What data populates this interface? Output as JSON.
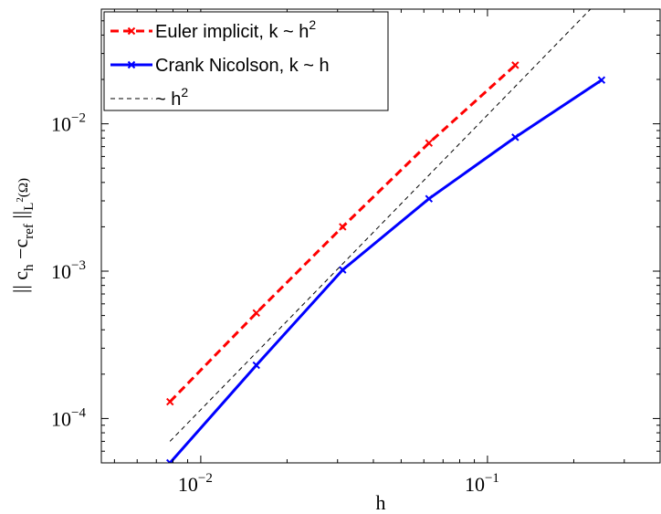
{
  "chart_data": {
    "type": "line",
    "x_scale": "log",
    "y_scale": "log",
    "xlabel": "h",
    "ylabel": "|| c_h − c_ref ||_{L^2(Ω)}",
    "xlim": [
      0.0045,
      0.4
    ],
    "ylim": [
      5e-05,
      0.06
    ],
    "grid": false,
    "legend_position": "top-left",
    "x_ticks": [
      {
        "value": 0.01,
        "base": "10",
        "exp": "−2"
      },
      {
        "value": 0.1,
        "base": "10",
        "exp": "−1"
      }
    ],
    "y_ticks": [
      {
        "value": 0.0001,
        "base": "10",
        "exp": "−4"
      },
      {
        "value": 0.001,
        "base": "10",
        "exp": "−3"
      },
      {
        "value": 0.01,
        "base": "10",
        "exp": "−2"
      }
    ],
    "series": [
      {
        "name": "Euler implicit,  k ~ h",
        "name_sup": "2",
        "color": "#ff0000",
        "dash": "9,5",
        "marker": "x",
        "x": [
          0.0078125,
          0.015625,
          0.03125,
          0.0625,
          0.125
        ],
        "y": [
          0.00013,
          0.00052,
          0.002,
          0.0074,
          0.025
        ]
      },
      {
        "name": "Crank Nicolson,  k ~ h",
        "name_sup": "",
        "color": "#0000ff",
        "dash": "",
        "marker": "x",
        "x": [
          0.0078125,
          0.015625,
          0.03125,
          0.0625,
          0.125,
          0.25
        ],
        "y": [
          5e-05,
          0.00023,
          0.00102,
          0.0031,
          0.0081,
          0.0198
        ]
      },
      {
        "name": "~ h",
        "name_sup": "2",
        "color": "#000000",
        "dash": "5,4",
        "marker": "",
        "x": [
          0.0078125,
          0.25
        ],
        "y": [
          7e-05,
          0.0717
        ]
      }
    ]
  }
}
